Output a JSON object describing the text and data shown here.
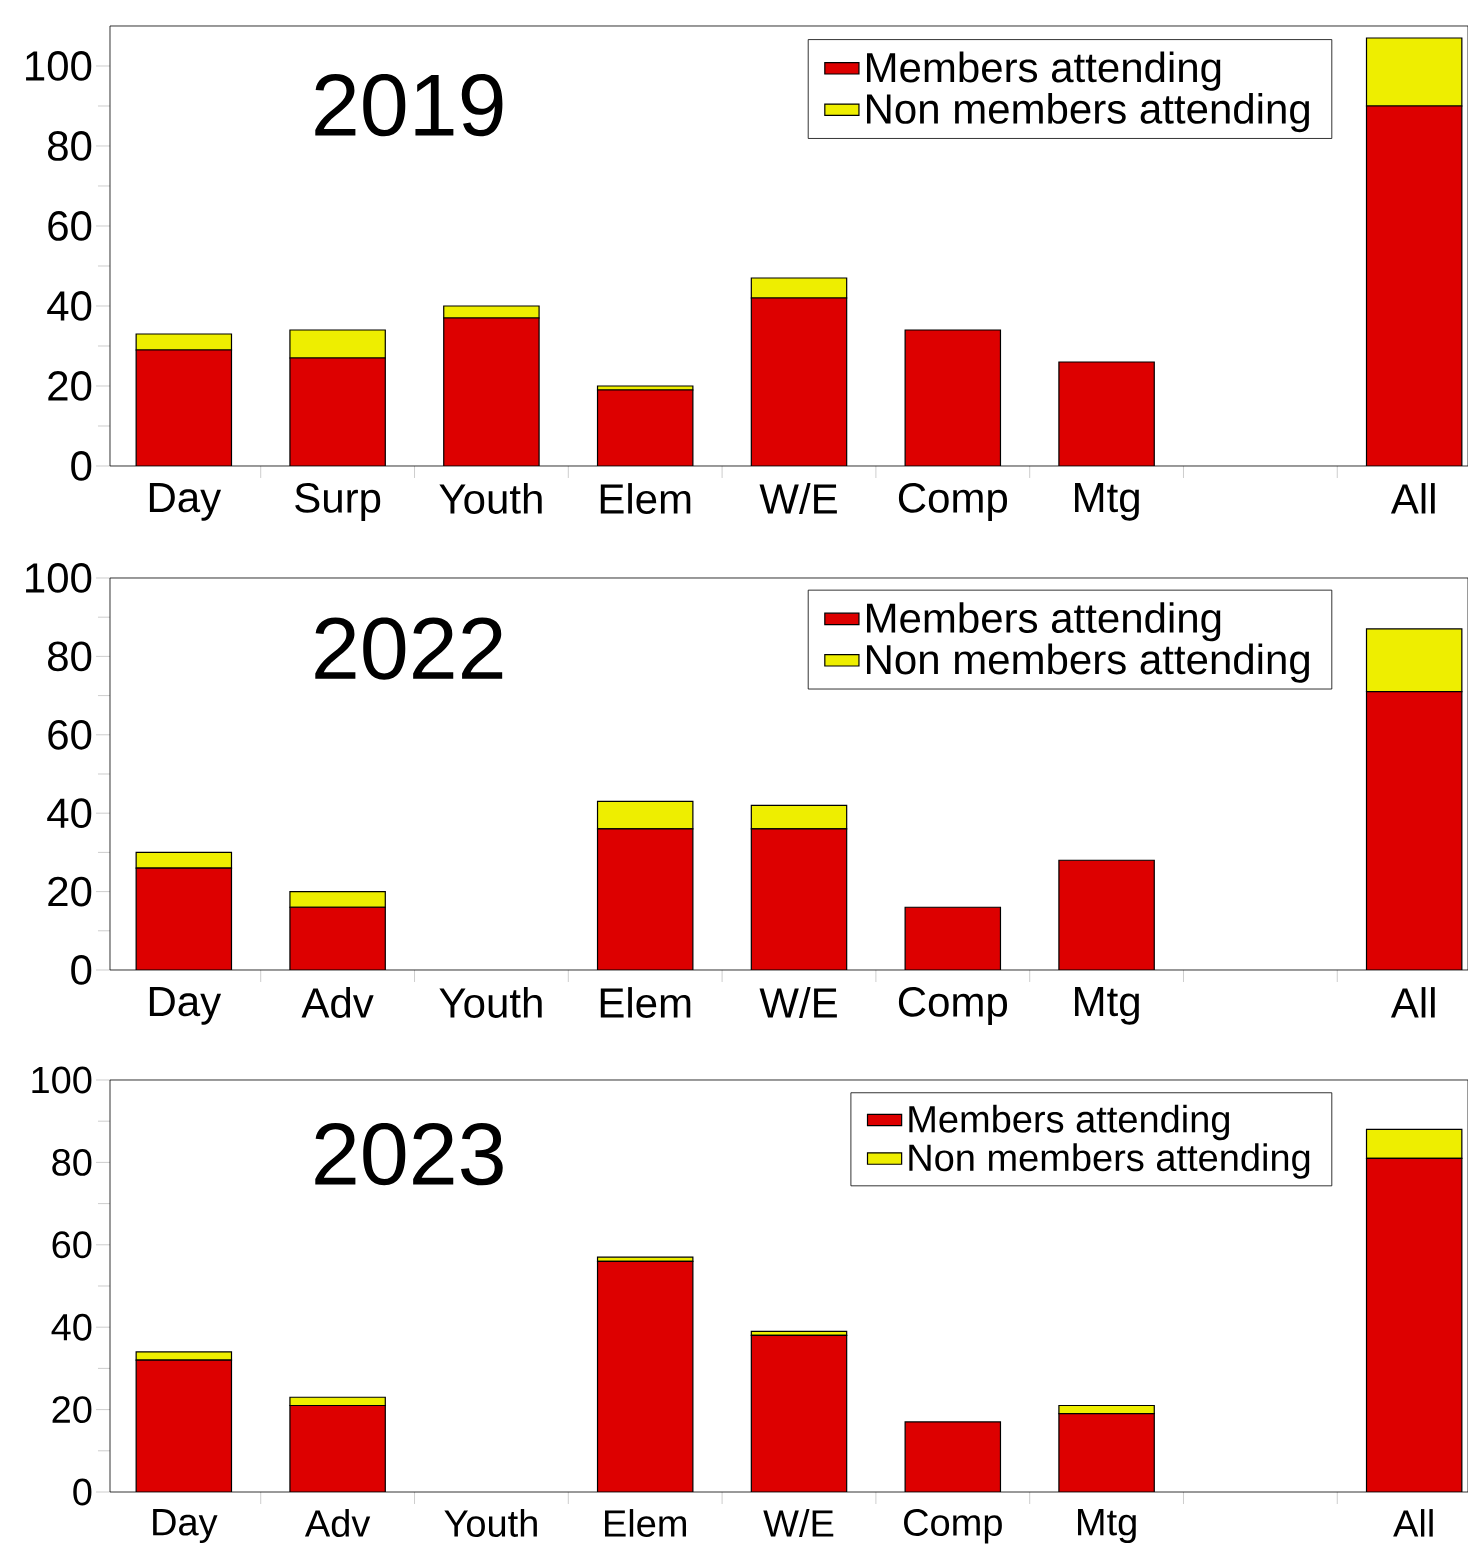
{
  "chart_data": [
    {
      "type": "bar",
      "stacked": true,
      "title": "2019",
      "categories": [
        "Day",
        "Surp",
        "Youth",
        "Elem",
        "W/E",
        "Comp",
        "Mtg",
        null,
        "All"
      ],
      "series": [
        {
          "name": "Members attending",
          "color": "#dd0000",
          "values": [
            29,
            27,
            37,
            19,
            42,
            34,
            26,
            null,
            90
          ]
        },
        {
          "name": "Non members attending",
          "color": "#eeee00",
          "values": [
            4,
            7,
            3,
            1,
            5,
            0,
            0,
            null,
            17
          ]
        }
      ],
      "ylim": [
        0,
        110
      ],
      "yticks": [
        0,
        {
          "value": 10,
          "label": null
        },
        20,
        {
          "value": 30,
          "label": null
        },
        40,
        {
          "value": 50,
          "label": null
        },
        60,
        {
          "value": 70,
          "label": null
        },
        80,
        {
          "value": 90,
          "label": null
        },
        100
      ],
      "legend": "top right",
      "grid": false
    },
    {
      "type": "bar",
      "stacked": true,
      "title": "2022",
      "categories": [
        "Day",
        "Adv",
        "Youth",
        "Elem",
        "W/E",
        "Comp",
        "Mtg",
        null,
        "All"
      ],
      "series": [
        {
          "name": "Members attending",
          "color": "#dd0000",
          "values": [
            26,
            16,
            null,
            36,
            36,
            16,
            28,
            null,
            71
          ]
        },
        {
          "name": "Non members attending",
          "color": "#eeee00",
          "values": [
            4,
            4,
            null,
            7,
            6,
            0,
            0,
            null,
            16
          ]
        }
      ],
      "ylim": [
        0,
        100
      ],
      "yticks": [
        0,
        {
          "value": 10,
          "label": null
        },
        20,
        {
          "value": 30,
          "label": null
        },
        40,
        {
          "value": 50,
          "label": null
        },
        60,
        {
          "value": 70,
          "label": null
        },
        80,
        {
          "value": 90,
          "label": null
        },
        100
      ],
      "legend": "top right",
      "grid": false
    },
    {
      "type": "bar",
      "stacked": true,
      "title": "2023",
      "categories": [
        "Day",
        "Adv",
        "Youth",
        "Elem",
        "W/E",
        "Comp",
        "Mtg",
        null,
        "All"
      ],
      "series": [
        {
          "name": "Members attending",
          "color": "#dd0000",
          "values": [
            32,
            21,
            null,
            56,
            38,
            17,
            19,
            null,
            81
          ]
        },
        {
          "name": "Non members attending",
          "color": "#eeee00",
          "values": [
            2,
            2,
            null,
            1,
            1,
            0,
            2,
            null,
            7
          ]
        }
      ],
      "ylim": [
        0,
        100
      ],
      "yticks": [
        0,
        {
          "value": 10,
          "label": null
        },
        20,
        {
          "value": 30,
          "label": null
        },
        40,
        {
          "value": 50,
          "label": null
        },
        60,
        {
          "value": 70,
          "label": null
        },
        80,
        {
          "value": 90,
          "label": null
        },
        100
      ],
      "legend": "top right",
      "grid": false
    }
  ]
}
